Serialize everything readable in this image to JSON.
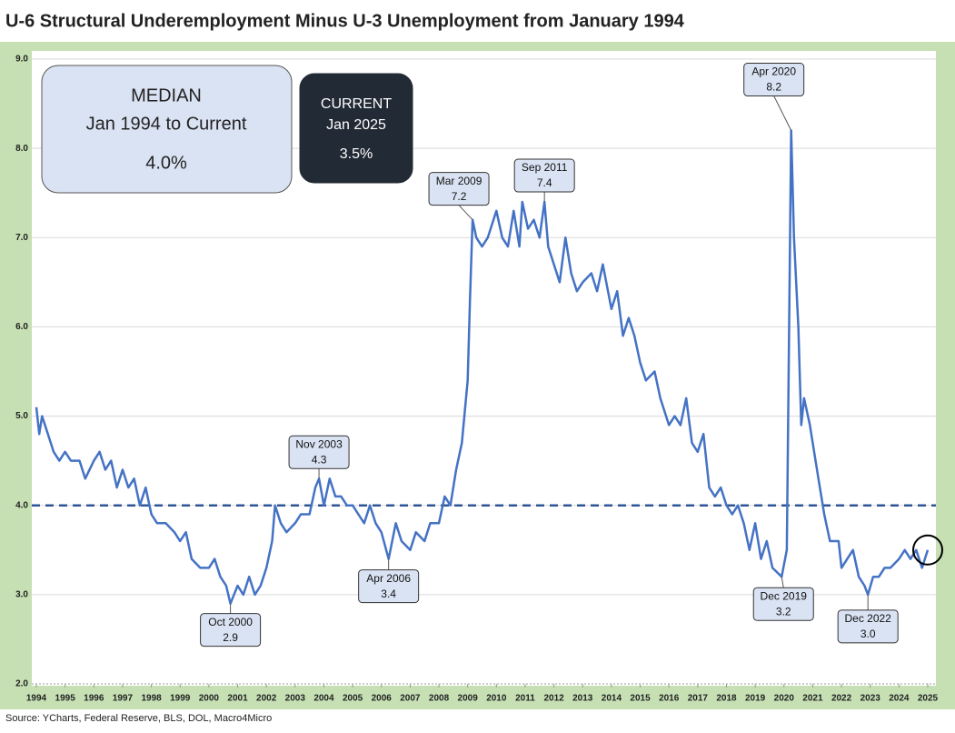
{
  "chart_data": {
    "type": "line",
    "title": "U-6 Structural Underemployment Minus U-3 Unemployment from January 1994",
    "source": "Source: YCharts, Federal Reserve, BLS, DOL, Macro4Micro",
    "xlim": [
      1994,
      2025.1
    ],
    "xticks": [
      1994,
      1995,
      1996,
      1997,
      1998,
      1999,
      2000,
      2001,
      2002,
      2003,
      2004,
      2005,
      2006,
      2007,
      2008,
      2009,
      2010,
      2011,
      2012,
      2013,
      2014,
      2015,
      2016,
      2017,
      2018,
      2019,
      2020,
      2021,
      2022,
      2023,
      2024,
      2025
    ],
    "ylim": [
      2,
      9
    ],
    "yticks": [
      {
        "value": 2,
        "label": "2.0"
      },
      {
        "value": 3,
        "label": "3.0"
      },
      {
        "value": 4,
        "label": "4.0"
      },
      {
        "value": 5,
        "label": "5.0"
      },
      {
        "value": 6,
        "label": "6.0"
      },
      {
        "value": 7,
        "label": "7.0"
      },
      {
        "value": 8,
        "label": "8.0"
      },
      {
        "value": 9,
        "label": "9.0"
      }
    ],
    "grid": true,
    "series": [
      {
        "color": "#4472c4",
        "x": [
          1994.0,
          1994.1,
          1994.2,
          1994.4,
          1994.6,
          1994.8,
          1995.0,
          1995.2,
          1995.5,
          1995.7,
          1996.0,
          1996.2,
          1996.4,
          1996.6,
          1996.8,
          1997.0,
          1997.2,
          1997.4,
          1997.6,
          1997.8,
          1998.0,
          1998.2,
          1998.5,
          1998.8,
          1999.0,
          1999.2,
          1999.4,
          1999.7,
          2000.0,
          2000.2,
          2000.4,
          2000.6,
          2000.75,
          2001.0,
          2001.2,
          2001.4,
          2001.6,
          2001.8,
          2002.0,
          2002.2,
          2002.3,
          2002.5,
          2002.7,
          2003.0,
          2003.2,
          2003.5,
          2003.7,
          2003.83,
          2004.0,
          2004.2,
          2004.4,
          2004.6,
          2004.8,
          2005.0,
          2005.2,
          2005.4,
          2005.6,
          2005.8,
          2006.0,
          2006.25,
          2006.5,
          2006.7,
          2007.0,
          2007.2,
          2007.5,
          2007.7,
          2008.0,
          2008.2,
          2008.4,
          2008.6,
          2008.8,
          2009.0,
          2009.08,
          2009.17,
          2009.3,
          2009.5,
          2009.7,
          2010.0,
          2010.2,
          2010.4,
          2010.6,
          2010.8,
          2010.9,
          2011.1,
          2011.3,
          2011.5,
          2011.67,
          2011.8,
          2012.0,
          2012.2,
          2012.4,
          2012.6,
          2012.8,
          2013.0,
          2013.3,
          2013.5,
          2013.7,
          2014.0,
          2014.2,
          2014.4,
          2014.6,
          2014.8,
          2015.0,
          2015.2,
          2015.5,
          2015.7,
          2016.0,
          2016.2,
          2016.4,
          2016.6,
          2016.8,
          2017.0,
          2017.2,
          2017.4,
          2017.6,
          2017.8,
          2018.0,
          2018.2,
          2018.4,
          2018.6,
          2018.8,
          2019.0,
          2019.2,
          2019.4,
          2019.6,
          2019.92,
          2020.1,
          2020.25,
          2020.35,
          2020.5,
          2020.6,
          2020.7,
          2020.9,
          2021.0,
          2021.2,
          2021.4,
          2021.6,
          2021.9,
          2022.0,
          2022.2,
          2022.4,
          2022.6,
          2022.8,
          2022.92,
          2023.1,
          2023.3,
          2023.5,
          2023.7,
          2024.0,
          2024.2,
          2024.4,
          2024.6,
          2024.8,
          2025.0
        ],
        "values": [
          5.1,
          4.8,
          5.0,
          4.8,
          4.6,
          4.5,
          4.6,
          4.5,
          4.5,
          4.3,
          4.5,
          4.6,
          4.4,
          4.5,
          4.2,
          4.4,
          4.2,
          4.3,
          4.0,
          4.2,
          3.9,
          3.8,
          3.8,
          3.7,
          3.6,
          3.7,
          3.4,
          3.3,
          3.3,
          3.4,
          3.2,
          3.1,
          2.9,
          3.1,
          3.0,
          3.2,
          3.0,
          3.1,
          3.3,
          3.6,
          4.0,
          3.8,
          3.7,
          3.8,
          3.9,
          3.9,
          4.2,
          4.3,
          4.0,
          4.3,
          4.1,
          4.1,
          4.0,
          4.0,
          3.9,
          3.8,
          4.0,
          3.8,
          3.7,
          3.4,
          3.8,
          3.6,
          3.5,
          3.7,
          3.6,
          3.8,
          3.8,
          4.1,
          4.0,
          4.4,
          4.7,
          5.4,
          6.3,
          7.2,
          7.0,
          6.9,
          7.0,
          7.3,
          7.0,
          6.9,
          7.3,
          6.9,
          7.4,
          7.1,
          7.2,
          7.0,
          7.4,
          6.9,
          6.7,
          6.5,
          7.0,
          6.6,
          6.4,
          6.5,
          6.6,
          6.4,
          6.7,
          6.2,
          6.4,
          5.9,
          6.1,
          5.9,
          5.6,
          5.4,
          5.5,
          5.2,
          4.9,
          5.0,
          4.9,
          5.2,
          4.7,
          4.6,
          4.8,
          4.2,
          4.1,
          4.2,
          4.0,
          3.9,
          4.0,
          3.8,
          3.5,
          3.8,
          3.4,
          3.6,
          3.3,
          3.2,
          3.5,
          8.2,
          7.0,
          6.0,
          4.9,
          5.2,
          4.9,
          4.7,
          4.3,
          3.9,
          3.6,
          3.6,
          3.3,
          3.4,
          3.5,
          3.2,
          3.1,
          3.0,
          3.2,
          3.2,
          3.3,
          3.3,
          3.4,
          3.5,
          3.4,
          3.5,
          3.3,
          3.5
        ]
      }
    ],
    "median": 4.0,
    "median_box": {
      "title": "MEDIAN",
      "period": "Jan 1994 to Current",
      "label": "4.0%"
    },
    "current_box": {
      "title": "CURRENT",
      "period": "Jan 2025",
      "label": "3.5%"
    },
    "annotations": [
      {
        "date": "Oct 2000",
        "x": 2000.75,
        "value": 2.9,
        "value_label": "2.9"
      },
      {
        "date": "Nov 2003",
        "x": 2003.83,
        "value": 4.3,
        "value_label": "4.3"
      },
      {
        "date": "Apr 2006",
        "x": 2006.25,
        "value": 3.4,
        "value_label": "3.4"
      },
      {
        "date": "Mar 2009",
        "x": 2009.17,
        "value": 7.2,
        "value_label": "7.2"
      },
      {
        "date": "Sep 2011",
        "x": 2011.67,
        "value": 7.4,
        "value_label": "7.4"
      },
      {
        "date": "Dec 2019",
        "x": 2019.92,
        "value": 3.2,
        "value_label": "3.2"
      },
      {
        "date": "Apr 2020",
        "x": 2020.25,
        "value": 8.2,
        "value_label": "8.2"
      },
      {
        "date": "Dec 2022",
        "x": 2022.92,
        "value": 3.0,
        "value_label": "3.0"
      }
    ]
  }
}
